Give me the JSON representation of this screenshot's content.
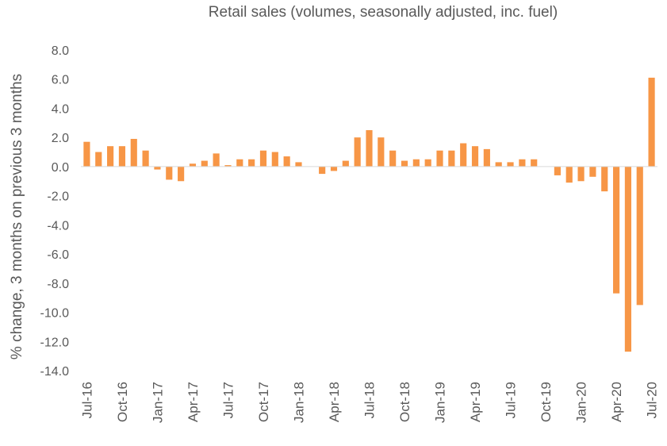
{
  "chart_data": {
    "type": "bar",
    "title": "Retail sales (volumes, seasonally adjusted, inc. fuel)",
    "ylabel": "% change, 3 months on previous 3 months",
    "xlabel": "",
    "ylim": [
      -14,
      8
    ],
    "yticks": [
      "8.0",
      "6.0",
      "4.0",
      "2.0",
      "0.0",
      "-2.0",
      "-4.0",
      "-6.0",
      "-8.0",
      "-10.0",
      "-12.0",
      "-14.0"
    ],
    "ytick_values": [
      8,
      6,
      4,
      2,
      0,
      -2,
      -4,
      -6,
      -8,
      -10,
      -12,
      -14
    ],
    "xtick_labels": [
      "Jul-16",
      "Oct-16",
      "Jan-17",
      "Apr-17",
      "Jul-17",
      "Oct-17",
      "Jan-18",
      "Apr-18",
      "Jul-18",
      "Oct-18",
      "Jan-19",
      "Apr-19",
      "Jul-19",
      "Oct-19",
      "Jan-20",
      "Apr-20",
      "Jul-20"
    ],
    "bar_color": "#F79646",
    "grid": false,
    "legend": "none",
    "categories": [
      "Jul-16",
      "Aug-16",
      "Sep-16",
      "Oct-16",
      "Nov-16",
      "Dec-16",
      "Jan-17",
      "Feb-17",
      "Mar-17",
      "Apr-17",
      "May-17",
      "Jun-17",
      "Jul-17",
      "Aug-17",
      "Sep-17",
      "Oct-17",
      "Nov-17",
      "Dec-17",
      "Jan-18",
      "Feb-18",
      "Mar-18",
      "Apr-18",
      "May-18",
      "Jun-18",
      "Jul-18",
      "Aug-18",
      "Sep-18",
      "Oct-18",
      "Nov-18",
      "Dec-18",
      "Jan-19",
      "Feb-19",
      "Mar-19",
      "Apr-19",
      "May-19",
      "Jun-19",
      "Jul-19",
      "Aug-19",
      "Sep-19",
      "Oct-19",
      "Nov-19",
      "Dec-19",
      "Jan-20",
      "Feb-20",
      "Mar-20",
      "Apr-20",
      "May-20",
      "Jun-20",
      "Jul-20"
    ],
    "values": [
      1.7,
      1.0,
      1.4,
      1.4,
      1.9,
      1.1,
      -0.2,
      -0.9,
      -1.0,
      0.2,
      0.4,
      0.9,
      0.1,
      0.5,
      0.5,
      1.1,
      1.0,
      0.7,
      0.3,
      0.0,
      -0.5,
      -0.3,
      0.4,
      2.0,
      2.5,
      2.0,
      1.1,
      0.4,
      0.5,
      0.5,
      1.1,
      1.1,
      1.6,
      1.4,
      1.2,
      0.3,
      0.3,
      0.5,
      0.5,
      0.0,
      -0.6,
      -1.1,
      -1.0,
      -0.7,
      -1.7,
      -8.7,
      -12.7,
      -9.5,
      6.1
    ]
  }
}
